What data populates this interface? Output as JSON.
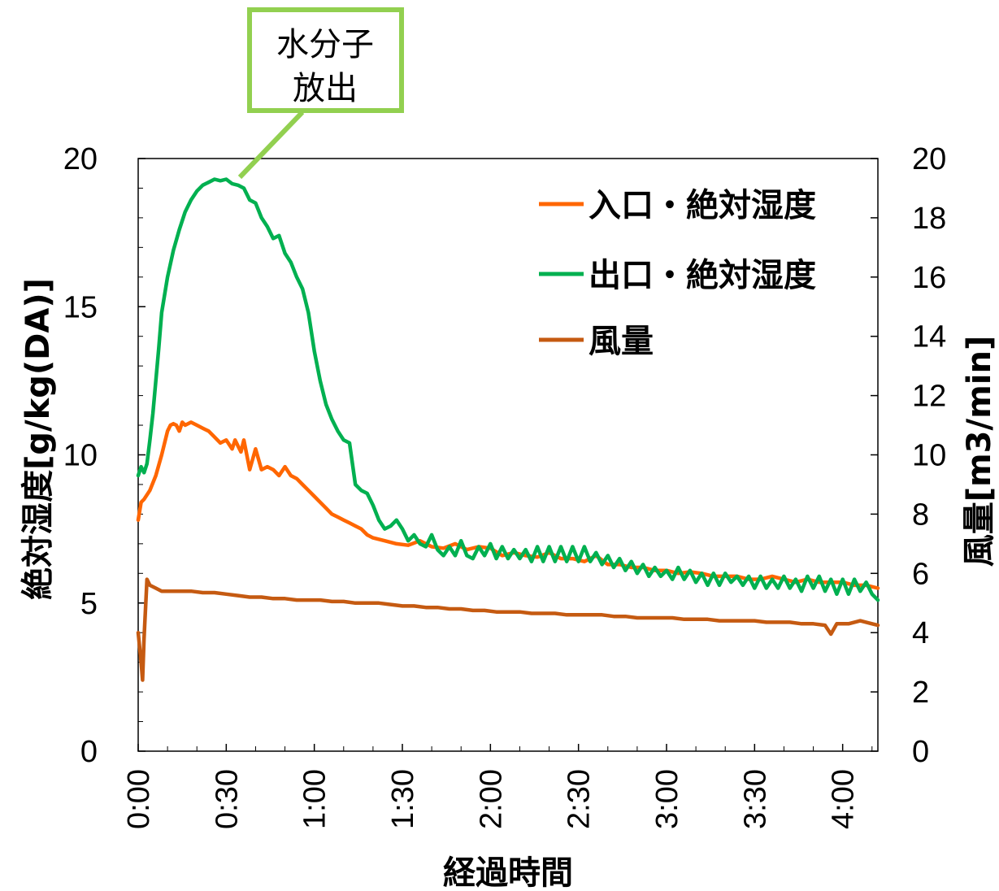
{
  "chart_data": {
    "type": "line",
    "xlabel": "経過時間",
    "ylabel": "絶対湿度[g/kg(DA)]",
    "y2label": "風量[m3/min]",
    "xlim": [
      0,
      252
    ],
    "ylim": [
      0,
      20
    ],
    "y2lim": [
      0,
      20
    ],
    "x_ticks": [
      {
        "value": 0,
        "label": "0:00"
      },
      {
        "value": 30,
        "label": "0:30"
      },
      {
        "value": 60,
        "label": "1:00"
      },
      {
        "value": 90,
        "label": "1:30"
      },
      {
        "value": 120,
        "label": "2:00"
      },
      {
        "value": 150,
        "label": "2:30"
      },
      {
        "value": 180,
        "label": "3:00"
      },
      {
        "value": 210,
        "label": "3:30"
      },
      {
        "value": 240,
        "label": "4:00"
      }
    ],
    "y_ticks": [
      {
        "value": 0,
        "label": "0"
      },
      {
        "value": 5,
        "label": "5"
      },
      {
        "value": 10,
        "label": "10"
      },
      {
        "value": 15,
        "label": "15"
      },
      {
        "value": 20,
        "label": "20"
      }
    ],
    "y2_ticks": [
      {
        "value": 0,
        "label": "0"
      },
      {
        "value": 2,
        "label": "2"
      },
      {
        "value": 4,
        "label": "4"
      },
      {
        "value": 6,
        "label": "6"
      },
      {
        "value": 8,
        "label": "8"
      },
      {
        "value": 10,
        "label": "10"
      },
      {
        "value": 12,
        "label": "12"
      },
      {
        "value": 14,
        "label": "14"
      },
      {
        "value": 16,
        "label": "16"
      },
      {
        "value": 18,
        "label": "18"
      },
      {
        "value": 20,
        "label": "20"
      }
    ],
    "legend_position": "top-right",
    "annotation": {
      "lines": [
        "水分子",
        "放出"
      ],
      "target": {
        "x": 30,
        "y": 19.2
      },
      "color": "#92d050"
    },
    "series": [
      {
        "name": "入口・絶対湿度",
        "axis": "left",
        "color": "#ff6600",
        "x": [
          0,
          1,
          2,
          4,
          6,
          8,
          10,
          11,
          12,
          13,
          14,
          15,
          16,
          18,
          20,
          22,
          24,
          26,
          28,
          30,
          32,
          33,
          34,
          35,
          36,
          37,
          38,
          40,
          42,
          44,
          46,
          48,
          50,
          52,
          54,
          56,
          58,
          60,
          62,
          64,
          66,
          68,
          70,
          72,
          74,
          76,
          78,
          80,
          84,
          88,
          92,
          96,
          100,
          104,
          108,
          112,
          116,
          120,
          124,
          128,
          132,
          136,
          140,
          144,
          148,
          152,
          156,
          160,
          164,
          168,
          172,
          176,
          180,
          184,
          188,
          192,
          196,
          200,
          204,
          208,
          212,
          216,
          220,
          224,
          228,
          232,
          236,
          240,
          244,
          248,
          252
        ],
        "y": [
          7.8,
          8.4,
          8.5,
          8.8,
          9.3,
          10.0,
          10.8,
          11.0,
          11.05,
          11.0,
          10.8,
          11.1,
          11.0,
          11.1,
          11.0,
          10.9,
          10.8,
          10.6,
          10.4,
          10.5,
          10.2,
          10.5,
          10.3,
          10.1,
          10.5,
          10.0,
          9.5,
          10.2,
          9.5,
          9.6,
          9.5,
          9.3,
          9.6,
          9.3,
          9.2,
          9.0,
          8.8,
          8.6,
          8.4,
          8.2,
          8.0,
          7.9,
          7.8,
          7.7,
          7.6,
          7.5,
          7.3,
          7.2,
          7.1,
          7.0,
          6.95,
          7.1,
          6.9,
          6.85,
          7.0,
          6.8,
          6.9,
          6.85,
          6.6,
          6.7,
          6.6,
          6.55,
          6.7,
          6.5,
          6.5,
          6.4,
          6.6,
          6.3,
          6.3,
          6.2,
          6.2,
          6.1,
          6.1,
          6.0,
          6.05,
          6.0,
          5.9,
          5.9,
          5.9,
          5.8,
          5.8,
          5.9,
          5.8,
          5.7,
          5.8,
          5.7,
          5.7,
          5.7,
          5.6,
          5.6,
          5.5
        ]
      },
      {
        "name": "出口・絶対湿度",
        "axis": "left",
        "color": "#00b050",
        "x": [
          0,
          1,
          2,
          3,
          4,
          5,
          6,
          7,
          8,
          10,
          12,
          14,
          16,
          18,
          20,
          22,
          24,
          26,
          28,
          30,
          32,
          34,
          36,
          38,
          40,
          42,
          44,
          46,
          48,
          50,
          52,
          54,
          56,
          58,
          60,
          62,
          64,
          66,
          68,
          70,
          72,
          74,
          76,
          78,
          80,
          82,
          84,
          86,
          88,
          90,
          92,
          94,
          96,
          98,
          100,
          102,
          104,
          106,
          108,
          110,
          112,
          114,
          116,
          118,
          120,
          122,
          124,
          126,
          128,
          130,
          132,
          134,
          136,
          138,
          140,
          142,
          144,
          146,
          148,
          150,
          152,
          154,
          156,
          158,
          160,
          162,
          164,
          166,
          168,
          170,
          172,
          174,
          176,
          178,
          180,
          182,
          184,
          186,
          188,
          190,
          192,
          194,
          196,
          198,
          200,
          202,
          204,
          206,
          208,
          210,
          212,
          214,
          216,
          218,
          220,
          222,
          224,
          226,
          228,
          230,
          232,
          234,
          236,
          238,
          240,
          242,
          244,
          246,
          248,
          250,
          252
        ],
        "y": [
          9.3,
          9.6,
          9.4,
          9.7,
          10.5,
          11.4,
          12.5,
          13.6,
          14.8,
          16.0,
          16.9,
          17.6,
          18.2,
          18.6,
          18.9,
          19.1,
          19.2,
          19.3,
          19.25,
          19.3,
          19.15,
          19.1,
          19.0,
          18.6,
          18.5,
          18.0,
          17.7,
          17.3,
          17.4,
          16.8,
          16.5,
          16.0,
          15.6,
          14.8,
          13.5,
          12.5,
          11.7,
          11.2,
          10.8,
          10.5,
          10.4,
          9.0,
          8.8,
          8.7,
          8.3,
          7.8,
          7.5,
          7.6,
          7.8,
          7.5,
          7.1,
          7.3,
          7.0,
          6.9,
          7.3,
          6.8,
          6.6,
          6.9,
          6.6,
          7.1,
          6.6,
          6.5,
          6.9,
          6.6,
          7.0,
          6.5,
          6.9,
          6.5,
          6.8,
          6.5,
          6.8,
          6.4,
          6.9,
          6.4,
          6.9,
          6.4,
          6.9,
          6.4,
          6.9,
          6.4,
          6.9,
          6.4,
          6.7,
          6.3,
          6.6,
          6.2,
          6.5,
          6.1,
          6.4,
          6.0,
          6.3,
          5.9,
          6.2,
          5.9,
          6.1,
          5.8,
          6.2,
          5.8,
          6.1,
          5.7,
          6.0,
          5.6,
          6.0,
          5.6,
          6.0,
          5.7,
          5.9,
          5.6,
          5.9,
          5.5,
          5.9,
          5.5,
          5.8,
          5.5,
          5.9,
          5.5,
          5.8,
          5.4,
          5.9,
          5.5,
          5.9,
          5.4,
          5.8,
          5.3,
          5.8,
          5.3,
          5.8,
          5.4,
          5.7,
          5.3,
          5.1
        ]
      },
      {
        "name": "風量",
        "axis": "right",
        "color": "#c55a11",
        "x": [
          0,
          1,
          1.5,
          2,
          3,
          4,
          6,
          8,
          10,
          14,
          18,
          22,
          26,
          30,
          34,
          38,
          42,
          46,
          50,
          54,
          58,
          62,
          66,
          70,
          74,
          78,
          82,
          86,
          90,
          94,
          98,
          102,
          106,
          110,
          114,
          118,
          122,
          126,
          130,
          134,
          138,
          142,
          146,
          150,
          154,
          158,
          162,
          166,
          170,
          174,
          178,
          182,
          186,
          190,
          194,
          198,
          202,
          206,
          210,
          214,
          218,
          222,
          226,
          230,
          234,
          236,
          238,
          242,
          246,
          250,
          252
        ],
        "y": [
          4.0,
          3.0,
          2.4,
          3.8,
          5.8,
          5.6,
          5.5,
          5.4,
          5.4,
          5.4,
          5.4,
          5.35,
          5.35,
          5.3,
          5.25,
          5.2,
          5.2,
          5.15,
          5.15,
          5.1,
          5.1,
          5.1,
          5.05,
          5.05,
          5.0,
          5.0,
          5.0,
          4.95,
          4.9,
          4.9,
          4.85,
          4.85,
          4.8,
          4.8,
          4.75,
          4.75,
          4.7,
          4.7,
          4.7,
          4.65,
          4.65,
          4.65,
          4.6,
          4.6,
          4.6,
          4.6,
          4.55,
          4.55,
          4.5,
          4.5,
          4.5,
          4.5,
          4.45,
          4.45,
          4.45,
          4.4,
          4.4,
          4.4,
          4.4,
          4.35,
          4.35,
          4.35,
          4.3,
          4.3,
          4.25,
          3.95,
          4.3,
          4.3,
          4.4,
          4.3,
          4.25
        ]
      }
    ]
  }
}
